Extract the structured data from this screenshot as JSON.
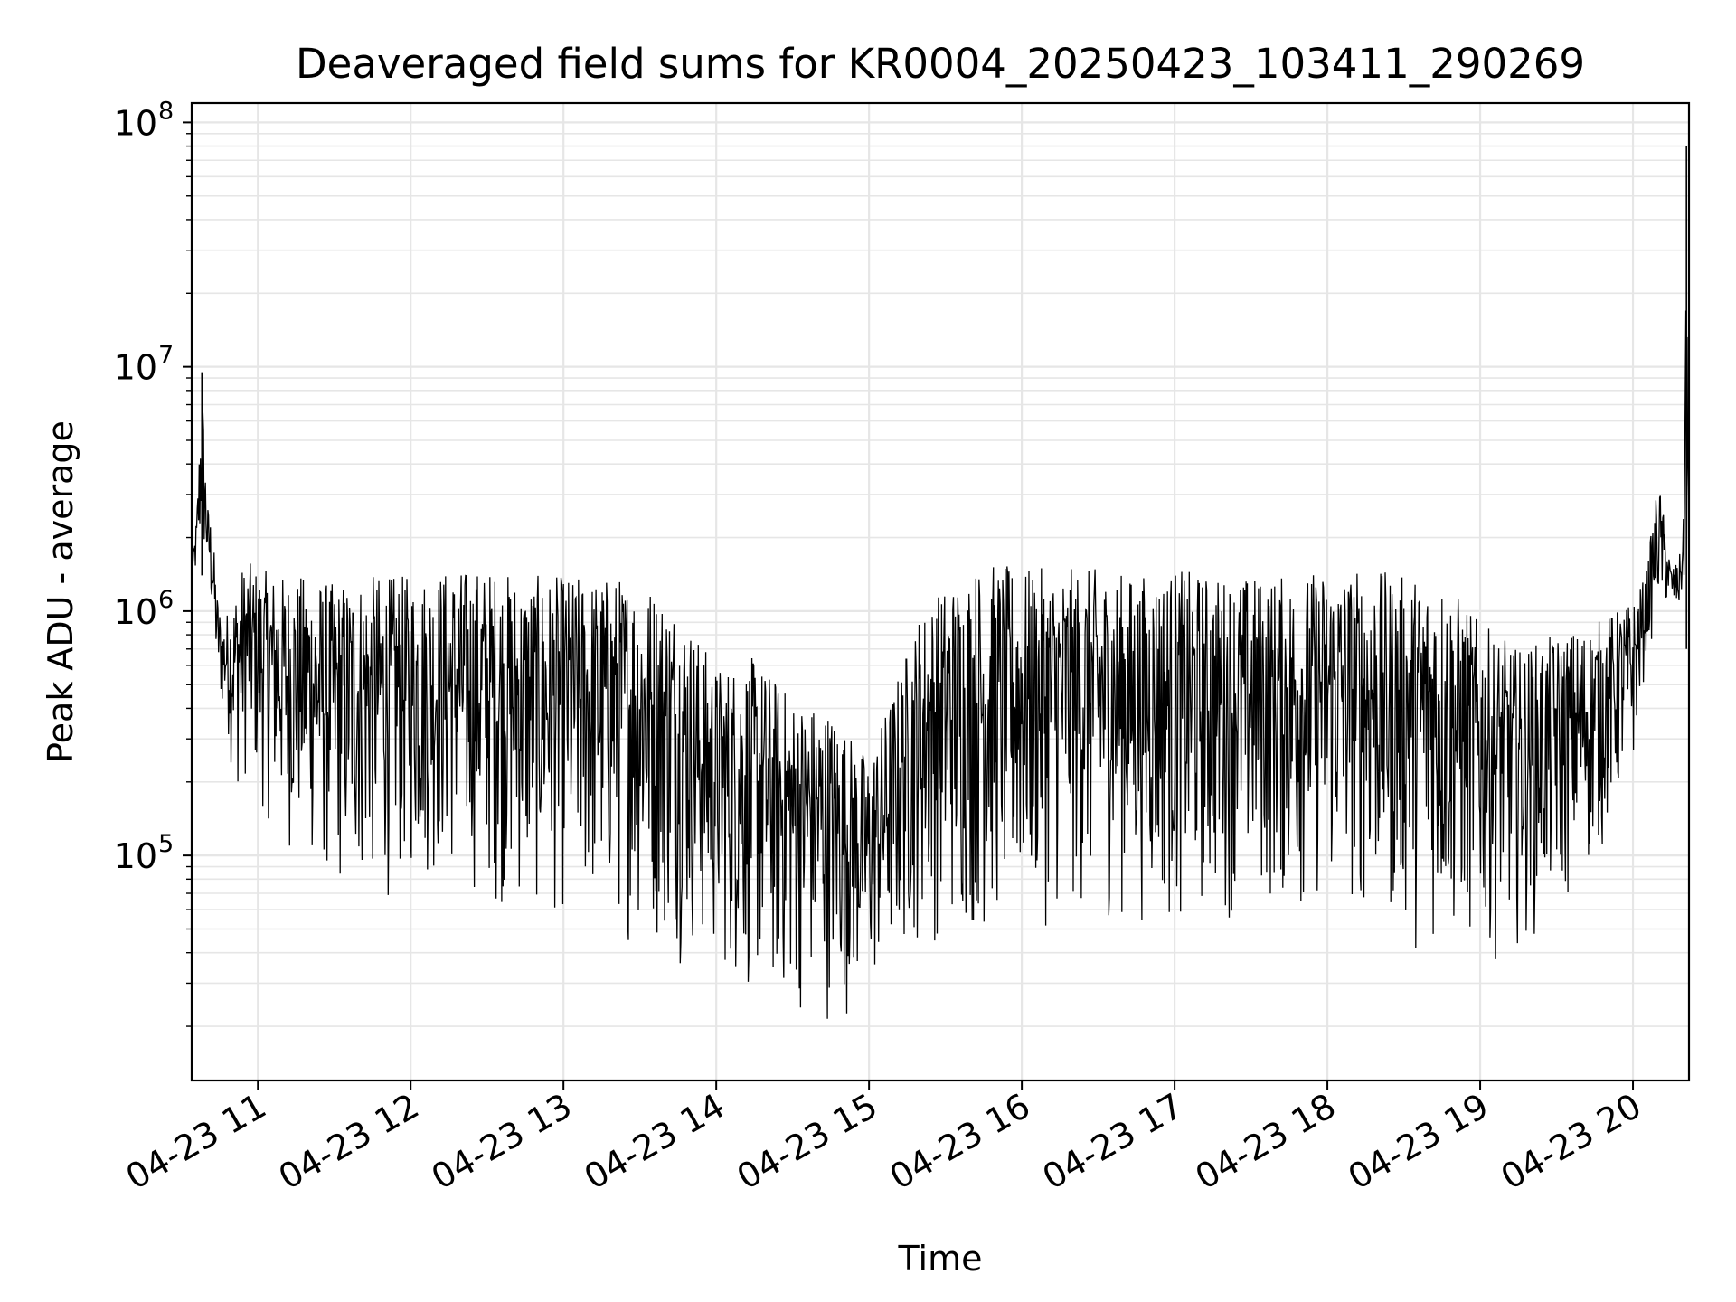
{
  "chart_data": {
    "type": "line",
    "title": "Deaveraged field sums for KR0004_20250423_103411_290269",
    "xlabel": "Time",
    "ylabel": "Peak ADU - average",
    "yscale": "log",
    "ylim": [
      12000,
      120000000
    ],
    "xlim": [
      "2025-04-23 10:34",
      "2025-04-23 20:22"
    ],
    "grid": true,
    "x_ticks": [
      {
        "value": "2025-04-23 11:00",
        "label": "04-23 11"
      },
      {
        "value": "2025-04-23 12:00",
        "label": "04-23 12"
      },
      {
        "value": "2025-04-23 13:00",
        "label": "04-23 13"
      },
      {
        "value": "2025-04-23 14:00",
        "label": "04-23 14"
      },
      {
        "value": "2025-04-23 15:00",
        "label": "04-23 15"
      },
      {
        "value": "2025-04-23 16:00",
        "label": "04-23 16"
      },
      {
        "value": "2025-04-23 17:00",
        "label": "04-23 17"
      },
      {
        "value": "2025-04-23 18:00",
        "label": "04-23 18"
      },
      {
        "value": "2025-04-23 19:00",
        "label": "04-23 19"
      },
      {
        "value": "2025-04-23 20:00",
        "label": "04-23 20"
      }
    ],
    "y_ticks": [
      {
        "value": 100000,
        "base": "10",
        "exp": "5"
      },
      {
        "value": 1000000,
        "base": "10",
        "exp": "6"
      },
      {
        "value": 10000000,
        "base": "10",
        "exp": "7"
      },
      {
        "value": 100000000,
        "base": "10",
        "exp": "8"
      }
    ],
    "line_color": "#000000",
    "grid_color": "#e6e6e6",
    "series": [
      {
        "x": [
          "2025-04-23 10:34",
          "2025-04-23 10:36",
          "2025-04-23 10:38",
          "2025-04-23 10:40",
          "2025-04-23 10:42",
          "2025-04-23 10:44",
          "2025-04-23 10:46",
          "2025-04-23 10:48",
          "2025-04-23 10:50",
          "2025-04-23 10:53",
          "2025-04-23 10:56",
          "2025-04-23 11:00",
          "2025-04-23 11:10",
          "2025-04-23 11:20",
          "2025-04-23 11:30",
          "2025-04-23 11:40",
          "2025-04-23 11:50",
          "2025-04-23 12:00",
          "2025-04-23 12:15",
          "2025-04-23 12:30",
          "2025-04-23 12:45",
          "2025-04-23 13:00",
          "2025-04-23 13:15",
          "2025-04-23 13:30",
          "2025-04-23 13:45",
          "2025-04-23 14:00",
          "2025-04-23 14:15",
          "2025-04-23 14:30",
          "2025-04-23 14:45",
          "2025-04-23 15:00",
          "2025-04-23 15:10",
          "2025-04-23 15:20",
          "2025-04-23 15:30",
          "2025-04-23 15:45",
          "2025-04-23 16:00",
          "2025-04-23 16:15",
          "2025-04-23 16:30",
          "2025-04-23 16:45",
          "2025-04-23 17:00",
          "2025-04-23 17:15",
          "2025-04-23 17:30",
          "2025-04-23 17:45",
          "2025-04-23 18:00",
          "2025-04-23 18:15",
          "2025-04-23 18:30",
          "2025-04-23 18:45",
          "2025-04-23 19:00",
          "2025-04-23 19:15",
          "2025-04-23 19:30",
          "2025-04-23 19:45",
          "2025-04-23 20:00",
          "2025-04-23 20:05",
          "2025-04-23 20:10",
          "2025-04-23 20:15",
          "2025-04-23 20:18",
          "2025-04-23 20:20",
          "2025-04-23 20:21",
          "2025-04-23 20:22"
        ],
        "y_upper": [
          1500000,
          2500000,
          9500000,
          2800000,
          2300000,
          1200000,
          900000,
          1000000,
          1100000,
          1500000,
          1600000,
          1500000,
          1400000,
          1400000,
          1300000,
          1400000,
          1400000,
          1400000,
          1500000,
          1500000,
          1400000,
          1400000,
          1400000,
          1400000,
          1100000,
          600000,
          650000,
          450000,
          400000,
          250000,
          500000,
          1000000,
          1300000,
          1600000,
          1500000,
          1500000,
          1500000,
          1400000,
          1500000,
          1400000,
          1400000,
          1400000,
          1500000,
          1500000,
          1400000,
          1400000,
          900000,
          700000,
          800000,
          900000,
          1100000,
          1400000,
          3500000,
          1500000,
          1600000,
          2500000,
          80000000,
          1200000
        ],
        "y_lower": [
          1200000,
          1300000,
          1400000,
          1300000,
          800000,
          450000,
          350000,
          300000,
          200000,
          150000,
          200000,
          150000,
          100000,
          80000,
          60000,
          60000,
          60000,
          70000,
          70000,
          60000,
          50000,
          50000,
          45000,
          40000,
          35000,
          30000,
          22000,
          20000,
          20000,
          22000,
          30000,
          40000,
          40000,
          40000,
          45000,
          50000,
          50000,
          50000,
          45000,
          50000,
          55000,
          50000,
          55000,
          50000,
          40000,
          35000,
          35000,
          40000,
          50000,
          80000,
          200000,
          600000,
          900000,
          1000000,
          900000,
          1100000,
          700000,
          550000
        ]
      }
    ]
  }
}
